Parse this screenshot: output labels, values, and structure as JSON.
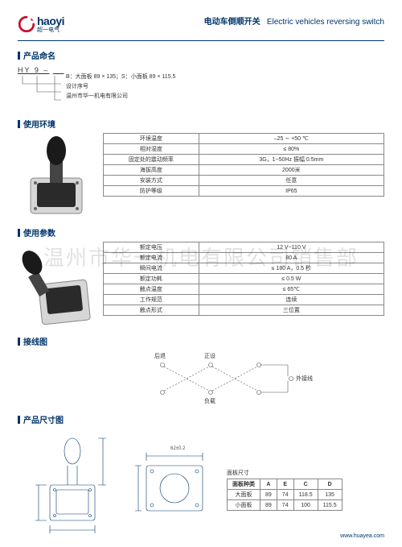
{
  "brand": {
    "name": "haoyi",
    "sub": "超一电气"
  },
  "title": {
    "cn": "电动车倒顺开关",
    "en": "Electric vehicles reversing switch"
  },
  "naming": {
    "section": "产品命名",
    "code_prefix": "HY 9 –",
    "lines": [
      "B：大面板 89 × 135；S：小面板 89 × 115.5",
      "设计序号",
      "温州市华一机电有限公司"
    ]
  },
  "env": {
    "section": "使用环境",
    "rows": [
      [
        "环境温度",
        "–25 ∼ +50 ℃"
      ],
      [
        "相对湿度",
        "≤ 80%"
      ],
      [
        "固定处的震动频率",
        "3G，1~50Hz 振幅 0.5mm"
      ],
      [
        "海拔高度",
        "2000米"
      ],
      [
        "安装方式",
        "任意"
      ],
      [
        "防护等级",
        "IP65"
      ]
    ]
  },
  "param": {
    "section": "使用参数",
    "rows": [
      [
        "额定电压",
        "12 V~110 V"
      ],
      [
        "额定电流",
        "80 A"
      ],
      [
        "瞬间电流",
        "≤ 180 A，0.5 秒"
      ],
      [
        "额定功耗",
        "≤ 0.5 W"
      ],
      [
        "触点温度",
        "≤ 65℃"
      ],
      [
        "工作规范",
        "连续"
      ],
      [
        "触点形式",
        "三位置"
      ]
    ]
  },
  "wiring": {
    "section": "接线图",
    "labels": {
      "fwd": "后退",
      "rev": "正设",
      "load": "负载",
      "ext": "外接线"
    }
  },
  "dims": {
    "section": "产品尺寸图",
    "table_title": "面板尺寸",
    "headers": [
      "面板种类",
      "A",
      "E",
      "C",
      "D"
    ],
    "rows": [
      [
        "大面板",
        "89",
        "74",
        "118.5",
        "135"
      ],
      [
        "小面板",
        "89",
        "74",
        "100",
        "115.5"
      ]
    ]
  },
  "watermark": "温州市华一机电有限公司销售部",
  "footer": "www.huayea.com",
  "colors": {
    "brand": "#00356b",
    "accent_red": "#c8102e",
    "line": "#555"
  }
}
